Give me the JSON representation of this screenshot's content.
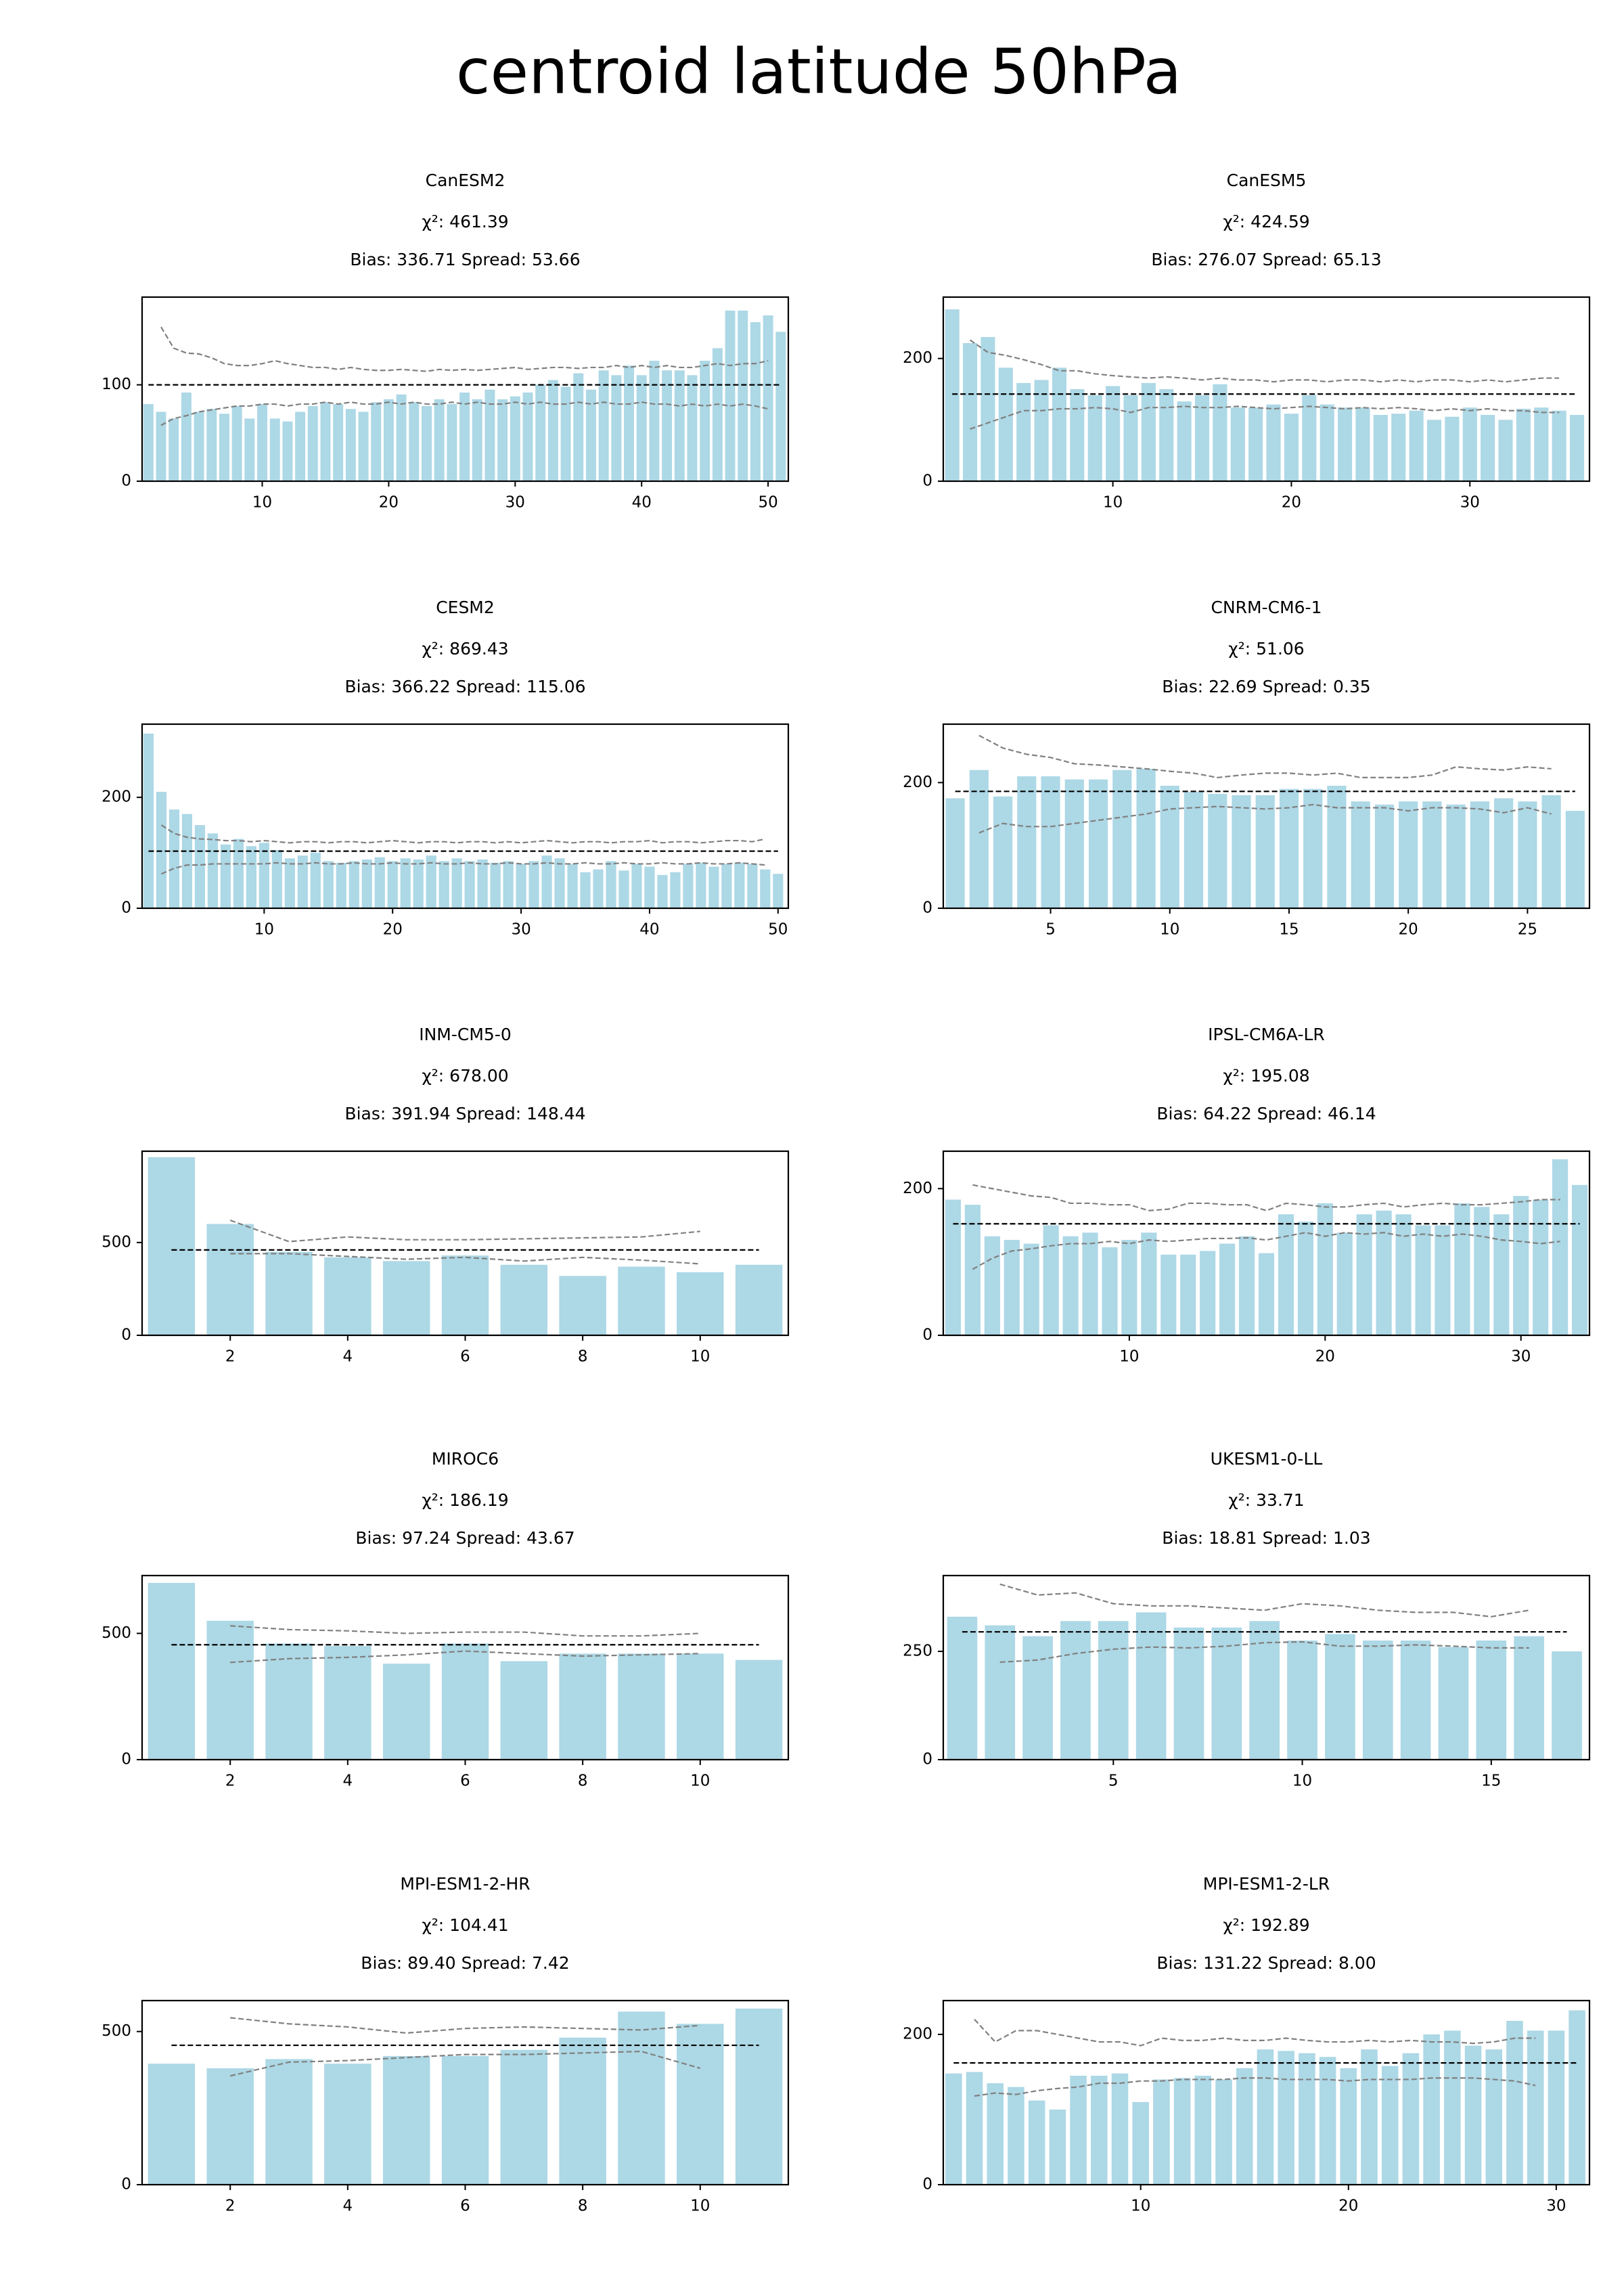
{
  "title": "centroid latitude 50hPa",
  "chart_data": [
    {
      "type": "bar",
      "title": "CanESM2",
      "subtitle": [
        "χ²: 461.39",
        "Bias: 336.71  Spread: 53.66"
      ],
      "x": [
        1,
        2,
        3,
        4,
        5,
        6,
        7,
        8,
        9,
        10,
        11,
        12,
        13,
        14,
        15,
        16,
        17,
        18,
        19,
        20,
        21,
        22,
        23,
        24,
        25,
        26,
        27,
        28,
        29,
        30,
        31,
        32,
        33,
        34,
        35,
        36,
        37,
        38,
        39,
        40,
        41,
        42,
        43,
        44,
        45,
        46,
        47,
        48,
        49,
        50,
        51
      ],
      "values": [
        80,
        72,
        65,
        92,
        72,
        75,
        70,
        78,
        65,
        80,
        65,
        62,
        72,
        78,
        82,
        80,
        75,
        72,
        82,
        85,
        90,
        82,
        78,
        85,
        80,
        92,
        85,
        95,
        85,
        88,
        92,
        100,
        105,
        98,
        112,
        95,
        115,
        110,
        120,
        110,
        125,
        115,
        115,
        110,
        125,
        138,
        177,
        177,
        165,
        172,
        155
      ],
      "upper": [
        null,
        160,
        138,
        133,
        132,
        128,
        122,
        120,
        120,
        122,
        125,
        122,
        120,
        118,
        118,
        116,
        118,
        116,
        115,
        115,
        116,
        115,
        114,
        116,
        115,
        116,
        115,
        116,
        117,
        118,
        116,
        117,
        118,
        118,
        117,
        118,
        118,
        120,
        118,
        120,
        118,
        120,
        118,
        118,
        120,
        122,
        120,
        122,
        122,
        125,
        null
      ],
      "lower": [
        null,
        58,
        65,
        68,
        72,
        74,
        76,
        78,
        78,
        80,
        80,
        78,
        80,
        80,
        82,
        80,
        82,
        80,
        80,
        82,
        80,
        82,
        80,
        80,
        82,
        80,
        82,
        80,
        80,
        82,
        80,
        82,
        80,
        80,
        82,
        80,
        82,
        80,
        80,
        82,
        80,
        80,
        78,
        80,
        78,
        80,
        78,
        80,
        78,
        75,
        null
      ],
      "expected": 100,
      "color": "#add8e6",
      "line_color": "#808080",
      "expected_color": "#000000",
      "xlim": [
        0.5,
        51.6
      ],
      "xticks": [
        10,
        20,
        30,
        40,
        50
      ],
      "ylim": [
        0,
        191
      ],
      "yticks": [
        0,
        100
      ]
    },
    {
      "type": "bar",
      "title": "CanESM5",
      "subtitle": [
        "χ²: 424.59",
        "Bias: 276.07  Spread: 65.13"
      ],
      "x": [
        1,
        2,
        3,
        4,
        5,
        6,
        7,
        8,
        9,
        10,
        11,
        12,
        13,
        14,
        15,
        16,
        17,
        18,
        19,
        20,
        21,
        22,
        23,
        24,
        25,
        26,
        27,
        28,
        29,
        30,
        31,
        32,
        33,
        34,
        35,
        36
      ],
      "values": [
        280,
        225,
        235,
        185,
        160,
        165,
        185,
        150,
        140,
        155,
        140,
        160,
        150,
        130,
        140,
        158,
        120,
        120,
        125,
        110,
        140,
        125,
        120,
        120,
        108,
        110,
        115,
        100,
        105,
        120,
        108,
        100,
        118,
        120,
        115,
        108
      ],
      "upper": [
        null,
        230,
        210,
        205,
        198,
        190,
        180,
        180,
        175,
        172,
        170,
        168,
        170,
        168,
        165,
        168,
        165,
        165,
        162,
        165,
        165,
        162,
        165,
        165,
        162,
        165,
        162,
        165,
        165,
        162,
        165,
        162,
        165,
        168,
        168,
        null
      ],
      "lower": [
        null,
        85,
        95,
        105,
        115,
        115,
        118,
        118,
        120,
        118,
        112,
        120,
        120,
        122,
        120,
        120,
        122,
        120,
        118,
        120,
        122,
        120,
        118,
        120,
        118,
        120,
        118,
        115,
        118,
        115,
        118,
        115,
        115,
        112,
        112,
        null
      ],
      "expected": 142,
      "color": "#add8e6",
      "line_color": "#808080",
      "expected_color": "#000000",
      "xlim": [
        0.5,
        36.7
      ],
      "xticks": [
        10,
        20,
        30
      ],
      "ylim": [
        0,
        300
      ],
      "yticks": [
        0,
        200
      ]
    },
    {
      "type": "bar",
      "title": "CESM2",
      "subtitle": [
        "χ²: 869.43",
        "Bias: 366.22  Spread: 115.06"
      ],
      "x": [
        1,
        2,
        3,
        4,
        5,
        6,
        7,
        8,
        9,
        10,
        11,
        12,
        13,
        14,
        15,
        16,
        17,
        18,
        19,
        20,
        21,
        22,
        23,
        24,
        25,
        26,
        27,
        28,
        29,
        30,
        31,
        32,
        33,
        34,
        35,
        36,
        37,
        38,
        39,
        40,
        41,
        42,
        43,
        44,
        45,
        46,
        47,
        48,
        49,
        50
      ],
      "values": [
        315,
        210,
        178,
        170,
        150,
        135,
        115,
        125,
        112,
        118,
        105,
        90,
        95,
        100,
        85,
        82,
        85,
        88,
        92,
        85,
        90,
        88,
        95,
        85,
        90,
        85,
        88,
        82,
        85,
        80,
        85,
        95,
        90,
        80,
        65,
        70,
        85,
        68,
        80,
        75,
        60,
        65,
        80,
        82,
        75,
        80,
        82,
        80,
        70,
        62
      ],
      "upper": [
        null,
        150,
        135,
        128,
        125,
        124,
        122,
        122,
        120,
        122,
        120,
        118,
        120,
        120,
        118,
        120,
        120,
        118,
        120,
        122,
        120,
        118,
        120,
        120,
        118,
        120,
        120,
        118,
        120,
        118,
        120,
        122,
        120,
        118,
        120,
        120,
        118,
        120,
        120,
        122,
        118,
        120,
        120,
        118,
        120,
        122,
        122,
        120,
        125,
        null
      ],
      "lower": [
        null,
        62,
        72,
        78,
        78,
        80,
        80,
        80,
        80,
        80,
        82,
        80,
        80,
        82,
        80,
        80,
        82,
        80,
        80,
        82,
        80,
        80,
        82,
        80,
        80,
        82,
        80,
        80,
        82,
        80,
        80,
        82,
        80,
        80,
        82,
        80,
        80,
        82,
        80,
        80,
        82,
        80,
        80,
        82,
        80,
        80,
        82,
        80,
        78,
        null
      ],
      "expected": 103,
      "color": "#add8e6",
      "line_color": "#808080",
      "expected_color": "#000000",
      "xlim": [
        0.5,
        50.8
      ],
      "xticks": [
        10,
        20,
        30,
        40,
        50
      ],
      "ylim": [
        0,
        332
      ],
      "yticks": [
        0,
        200
      ]
    },
    {
      "type": "bar",
      "title": "CNRM-CM6-1",
      "subtitle": [
        "χ²: 51.06",
        "Bias: 22.69  Spread: 0.35"
      ],
      "x": [
        1,
        2,
        3,
        4,
        5,
        6,
        7,
        8,
        9,
        10,
        11,
        12,
        13,
        14,
        15,
        16,
        17,
        18,
        19,
        20,
        21,
        22,
        23,
        24,
        25,
        26,
        27
      ],
      "values": [
        175,
        220,
        178,
        210,
        210,
        205,
        205,
        220,
        222,
        195,
        185,
        182,
        180,
        180,
        190,
        190,
        195,
        170,
        165,
        170,
        170,
        165,
        170,
        175,
        170,
        180,
        155
      ],
      "upper": [
        null,
        275,
        255,
        245,
        240,
        230,
        228,
        225,
        222,
        218,
        215,
        208,
        212,
        215,
        215,
        212,
        215,
        208,
        208,
        208,
        212,
        225,
        222,
        220,
        225,
        222,
        null
      ],
      "lower": [
        null,
        120,
        135,
        130,
        130,
        135,
        140,
        145,
        150,
        158,
        160,
        162,
        160,
        158,
        160,
        165,
        160,
        160,
        160,
        155,
        160,
        160,
        158,
        152,
        160,
        150,
        null
      ],
      "expected": 186,
      "color": "#add8e6",
      "line_color": "#808080",
      "expected_color": "#000000",
      "xlim": [
        0.5,
        27.6
      ],
      "xticks": [
        5,
        10,
        15,
        20,
        25
      ],
      "ylim": [
        0,
        293
      ],
      "yticks": [
        0,
        200
      ]
    },
    {
      "type": "bar",
      "title": "INM-CM5-0",
      "subtitle": [
        "χ²: 678.00",
        "Bias: 391.94  Spread: 148.44"
      ],
      "x": [
        1,
        2,
        3,
        4,
        5,
        6,
        7,
        8,
        9,
        10,
        11
      ],
      "values": [
        960,
        600,
        450,
        420,
        400,
        430,
        380,
        320,
        370,
        340,
        380
      ],
      "upper": [
        null,
        620,
        505,
        530,
        515,
        515,
        520,
        525,
        530,
        560,
        null
      ],
      "lower": [
        null,
        440,
        440,
        425,
        410,
        420,
        400,
        420,
        405,
        385,
        null
      ],
      "expected": 460,
      "color": "#add8e6",
      "line_color": "#808080",
      "expected_color": "#000000",
      "xlim": [
        0.5,
        11.5
      ],
      "xticks": [
        2,
        4,
        6,
        8,
        10
      ],
      "ylim": [
        0,
        992
      ],
      "yticks": [
        0,
        500
      ]
    },
    {
      "type": "bar",
      "title": "IPSL-CM6A-LR",
      "subtitle": [
        "χ²: 195.08",
        "Bias: 64.22  Spread: 46.14"
      ],
      "x": [
        1,
        2,
        3,
        4,
        5,
        6,
        7,
        8,
        9,
        10,
        11,
        12,
        13,
        14,
        15,
        16,
        17,
        18,
        19,
        20,
        21,
        22,
        23,
        24,
        25,
        26,
        27,
        28,
        29,
        30,
        31,
        32,
        33
      ],
      "values": [
        185,
        178,
        135,
        130,
        125,
        150,
        135,
        140,
        120,
        130,
        140,
        110,
        110,
        115,
        125,
        135,
        112,
        165,
        155,
        180,
        140,
        165,
        170,
        165,
        150,
        150,
        180,
        175,
        165,
        190,
        185,
        240,
        205
      ],
      "upper": [
        null,
        205,
        200,
        195,
        190,
        188,
        180,
        180,
        178,
        178,
        170,
        172,
        180,
        180,
        178,
        178,
        170,
        180,
        178,
        175,
        175,
        178,
        180,
        175,
        178,
        180,
        178,
        178,
        180,
        182,
        185,
        185,
        null
      ],
      "lower": [
        null,
        90,
        105,
        115,
        118,
        122,
        125,
        125,
        128,
        125,
        130,
        128,
        130,
        132,
        132,
        133,
        130,
        135,
        140,
        135,
        140,
        138,
        140,
        135,
        138,
        135,
        138,
        135,
        130,
        128,
        125,
        128,
        null
      ],
      "expected": 152,
      "color": "#add8e6",
      "line_color": "#808080",
      "expected_color": "#000000",
      "xlim": [
        0.5,
        33.5
      ],
      "xticks": [
        10,
        20,
        30
      ],
      "ylim": [
        0,
        251
      ],
      "yticks": [
        0,
        200
      ]
    },
    {
      "type": "bar",
      "title": "MIROC6",
      "subtitle": [
        "χ²: 186.19",
        "Bias: 97.24  Spread: 43.67"
      ],
      "x": [
        1,
        2,
        3,
        4,
        5,
        6,
        7,
        8,
        9,
        10,
        11
      ],
      "values": [
        700,
        550,
        460,
        450,
        380,
        460,
        390,
        420,
        420,
        420,
        395
      ],
      "upper": [
        null,
        530,
        515,
        510,
        500,
        505,
        505,
        490,
        490,
        500,
        null
      ],
      "lower": [
        null,
        385,
        400,
        405,
        415,
        430,
        420,
        410,
        415,
        420,
        null
      ],
      "expected": 455,
      "color": "#add8e6",
      "line_color": "#808080",
      "expected_color": "#000000",
      "xlim": [
        0.5,
        11.5
      ],
      "xticks": [
        2,
        4,
        6,
        8,
        10
      ],
      "ylim": [
        0,
        729
      ],
      "yticks": [
        0,
        500
      ]
    },
    {
      "type": "bar",
      "title": "UKESM1-0-LL",
      "subtitle": [
        "χ²: 33.71",
        "Bias: 18.81  Spread: 1.03"
      ],
      "x": [
        1,
        2,
        3,
        4,
        5,
        6,
        7,
        8,
        9,
        10,
        11,
        12,
        13,
        14,
        15,
        16,
        17
      ],
      "values": [
        330,
        310,
        285,
        320,
        320,
        340,
        305,
        305,
        320,
        275,
        290,
        275,
        275,
        260,
        275,
        285,
        250
      ],
      "upper": [
        null,
        405,
        380,
        385,
        360,
        355,
        355,
        350,
        345,
        360,
        355,
        345,
        340,
        340,
        330,
        345,
        null
      ],
      "lower": [
        null,
        225,
        230,
        245,
        255,
        260,
        258,
        262,
        270,
        272,
        262,
        262,
        265,
        262,
        258,
        258,
        null
      ],
      "expected": 295,
      "color": "#add8e6",
      "line_color": "#808080",
      "expected_color": "#000000",
      "xlim": [
        0.5,
        17.6
      ],
      "xticks": [
        5,
        10,
        15
      ],
      "ylim": [
        0,
        425
      ],
      "yticks": [
        0,
        250
      ]
    },
    {
      "type": "bar",
      "title": "MPI-ESM1-2-HR",
      "subtitle": [
        "χ²: 104.41",
        "Bias: 89.40  Spread: 7.42"
      ],
      "x": [
        1,
        2,
        3,
        4,
        5,
        6,
        7,
        8,
        9,
        10,
        11
      ],
      "values": [
        395,
        380,
        410,
        395,
        420,
        420,
        440,
        480,
        565,
        525,
        575
      ],
      "upper": [
        null,
        545,
        525,
        515,
        495,
        510,
        515,
        510,
        505,
        520,
        null
      ],
      "lower": [
        null,
        355,
        400,
        405,
        415,
        425,
        425,
        430,
        435,
        380,
        null
      ],
      "expected": 455,
      "color": "#add8e6",
      "line_color": "#808080",
      "expected_color": "#000000",
      "xlim": [
        0.5,
        11.5
      ],
      "xticks": [
        2,
        4,
        6,
        8,
        10
      ],
      "ylim": [
        0,
        601
      ],
      "yticks": [
        0,
        500
      ]
    },
    {
      "type": "bar",
      "title": "MPI-ESM1-2-LR",
      "subtitle": [
        "χ²: 192.89",
        "Bias: 131.22  Spread: 8.00"
      ],
      "x": [
        1,
        2,
        3,
        4,
        5,
        6,
        7,
        8,
        9,
        10,
        11,
        12,
        13,
        14,
        15,
        16,
        17,
        18,
        19,
        20,
        21,
        22,
        23,
        24,
        25,
        26,
        27,
        28,
        29,
        30,
        31
      ],
      "values": [
        148,
        150,
        135,
        130,
        112,
        100,
        145,
        145,
        148,
        110,
        140,
        142,
        145,
        140,
        155,
        180,
        178,
        175,
        170,
        155,
        180,
        158,
        175,
        200,
        205,
        185,
        180,
        218,
        205,
        205,
        232
      ],
      "upper": [
        null,
        220,
        190,
        205,
        205,
        200,
        195,
        190,
        190,
        185,
        195,
        192,
        192,
        195,
        192,
        192,
        195,
        192,
        190,
        190,
        192,
        190,
        192,
        190,
        190,
        188,
        190,
        195,
        195,
        null,
        null
      ],
      "lower": [
        null,
        118,
        122,
        120,
        125,
        128,
        130,
        135,
        135,
        138,
        138,
        140,
        140,
        140,
        142,
        142,
        140,
        140,
        140,
        138,
        140,
        140,
        140,
        142,
        142,
        142,
        140,
        138,
        132,
        null,
        null
      ],
      "expected": 162,
      "color": "#add8e6",
      "line_color": "#808080",
      "expected_color": "#000000",
      "xlim": [
        0.5,
        31.6
      ],
      "xticks": [
        10,
        20,
        30
      ],
      "ylim": [
        0,
        245
      ],
      "yticks": [
        0,
        200
      ]
    }
  ]
}
